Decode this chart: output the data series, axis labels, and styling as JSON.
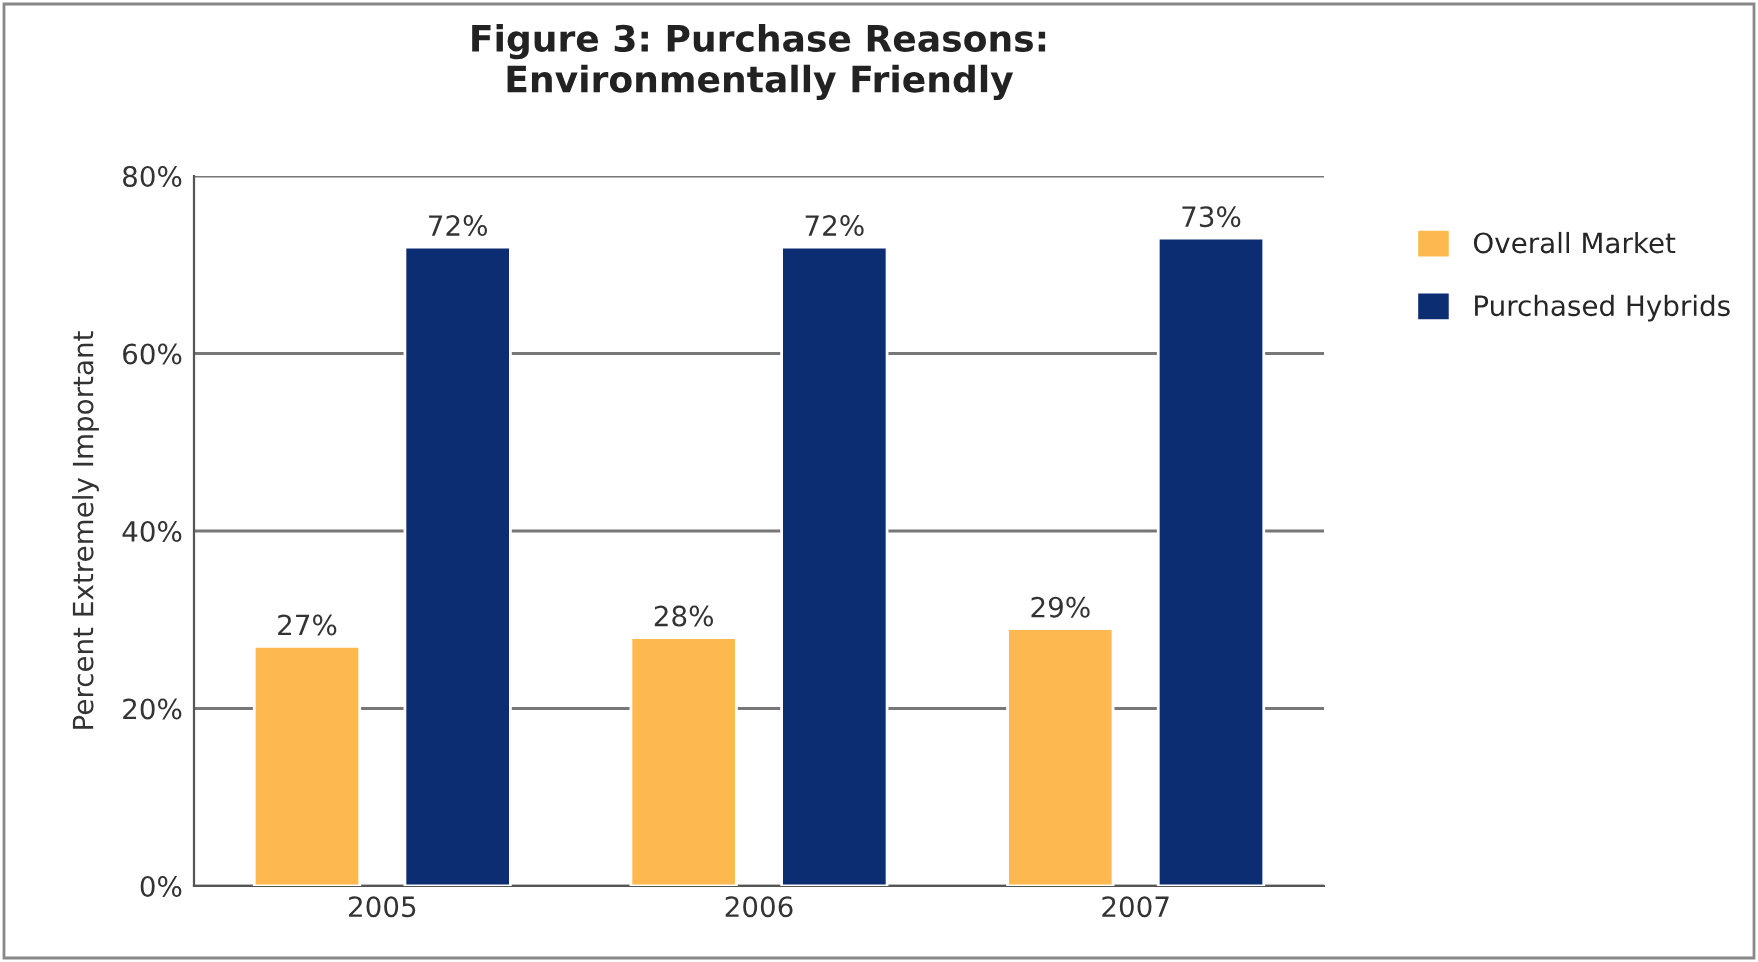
{
  "chart_data": {
    "type": "bar",
    "title": "Figure 3: Purchase Reasons:\nEnvironmentally Friendly",
    "categories": [
      "2005",
      "2006",
      "2007"
    ],
    "series": [
      {
        "name": "Overall Market",
        "color": "#fdb94f",
        "values": [
          27,
          28,
          29
        ],
        "value_labels": [
          "27%",
          "28%",
          "29%"
        ]
      },
      {
        "name": "Purchased Hybrids",
        "color": "#0c2d72",
        "values": [
          72,
          72,
          73
        ],
        "value_labels": [
          "72%",
          "72%",
          "73%"
        ]
      }
    ],
    "ylabel": "Percent Extremely Important",
    "ylim": [
      0,
      80
    ],
    "yticks": [
      {
        "value": 0,
        "label": "0%"
      },
      {
        "value": 20,
        "label": "20%"
      },
      {
        "value": 40,
        "label": "40%"
      },
      {
        "value": 60,
        "label": "60%"
      },
      {
        "value": 80,
        "label": "80%"
      }
    ],
    "grid": "y",
    "legend": "top right"
  }
}
